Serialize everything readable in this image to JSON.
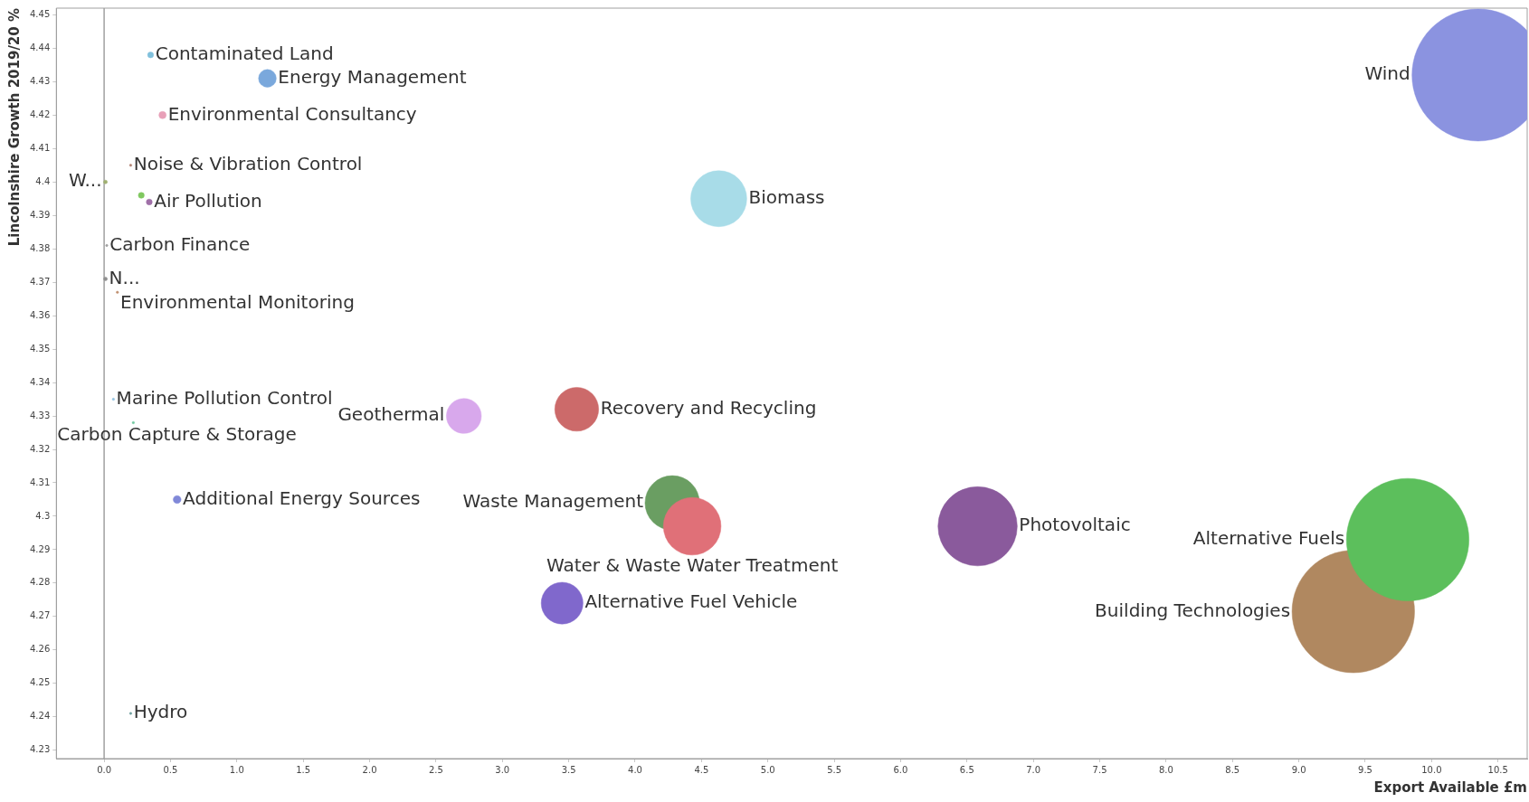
{
  "chart_data": {
    "type": "bubble",
    "xlabel": "Export Available £m",
    "ylabel": "Lincolnshire Growth 2019/20 %",
    "xlim": [
      -0.36,
      10.72
    ],
    "ylim": [
      4.2275,
      4.452
    ],
    "xticks": [
      {
        "value": 0,
        "label": "0.0"
      },
      0.5,
      {
        "value": 1,
        "label": "1.0"
      },
      1.5,
      {
        "value": 2,
        "label": "2.0"
      },
      2.5,
      {
        "value": 3,
        "label": "3.0"
      },
      3.5,
      {
        "value": 4,
        "label": "4.0"
      },
      4.5,
      {
        "value": 5,
        "label": "5.0"
      },
      5.5,
      {
        "value": 6,
        "label": "6.0"
      },
      6.5,
      {
        "value": 7,
        "label": "7.0"
      },
      7.5,
      {
        "value": 8,
        "label": "8.0"
      },
      8.5,
      {
        "value": 9,
        "label": "9.0"
      },
      9.5,
      {
        "value": 10,
        "label": "10.0"
      },
      10.5
    ],
    "yticks": [
      4.23,
      4.24,
      4.25,
      4.26,
      4.27,
      4.28,
      4.29,
      4.3,
      4.31,
      4.32,
      4.33,
      4.34,
      4.35,
      4.36,
      4.37,
      4.38,
      4.39,
      4.4,
      4.41,
      4.42,
      4.43,
      4.44,
      4.45
    ],
    "grid": false,
    "legend": false,
    "ref_lines": [
      {
        "axis": "x",
        "value": 0,
        "color": "#a0a0a0"
      }
    ],
    "series": [
      {
        "name": "Wind",
        "color": "#8b93e0",
        "x": [
          10.35
        ],
        "values": [
          4.432
        ],
        "sizes": [
          1
        ]
      },
      {
        "name": "Alternative Fuels",
        "color": "#5cbf5c",
        "x": [
          9.82
        ],
        "values": [
          4.293
        ],
        "sizes": [
          0.86
        ]
      },
      {
        "name": "Building Technologies",
        "color": "#b08860",
        "x": [
          9.41
        ],
        "values": [
          4.2715
        ],
        "sizes": [
          0.86
        ]
      },
      {
        "name": "Photovoltaic",
        "color": "#8a5a9c",
        "x": [
          6.58
        ],
        "values": [
          4.297
        ],
        "sizes": [
          0.36
        ]
      },
      {
        "name": "Biomass",
        "color": "#a8dce8",
        "x": [
          4.63
        ],
        "values": [
          4.395
        ],
        "sizes": [
          0.18
        ]
      },
      {
        "name": "Water & Waste Water Treatment",
        "color": "#e07078",
        "x": [
          4.43
        ],
        "values": [
          4.297
        ],
        "sizes": [
          0.19
        ]
      },
      {
        "name": "Waste Management",
        "color": "#6a9e62",
        "x": [
          4.28
        ],
        "values": [
          4.304
        ],
        "sizes": [
          0.17
        ]
      },
      {
        "name": "Recovery and Recycling",
        "color": "#cc6a6a",
        "x": [
          3.56
        ],
        "values": [
          4.332
        ],
        "sizes": [
          0.11
        ]
      },
      {
        "name": "Alternative Fuel Vehicle",
        "color": "#8068cc",
        "x": [
          3.45
        ],
        "values": [
          4.274
        ],
        "sizes": [
          0.1
        ]
      },
      {
        "name": "Geothermal",
        "color": "#d8a8ec",
        "x": [
          2.71
        ],
        "values": [
          4.33
        ],
        "sizes": [
          0.07
        ]
      },
      {
        "name": "Energy Management",
        "color": "#7aa8dc",
        "x": [
          1.23
        ],
        "values": [
          4.431
        ],
        "sizes": [
          0.018
        ]
      },
      {
        "name": "Environmental Consultancy",
        "color": "#e8a0b8",
        "x": [
          0.44
        ],
        "values": [
          4.42
        ],
        "sizes": [
          0.003
        ]
      },
      {
        "name": "Additional Energy Sources",
        "color": "#8088d8",
        "x": [
          0.55
        ],
        "values": [
          4.305
        ],
        "sizes": [
          0.0035
        ]
      },
      {
        "name": "Contaminated Land",
        "color": "#80c0dc",
        "x": [
          0.35
        ],
        "values": [
          4.438
        ],
        "sizes": [
          0.002
        ]
      },
      {
        "name": "Air Pollution",
        "color": "#a070a8",
        "x": [
          0.34
        ],
        "values": [
          4.394
        ],
        "sizes": [
          0.002
        ]
      },
      {
        "color": "#80c860",
        "x": [
          0.28
        ],
        "values": [
          4.396
        ],
        "sizes": [
          0.002
        ]
      },
      {
        "name": "Noise & Vibration Control",
        "color": "#b08070",
        "x": [
          0.2
        ],
        "values": [
          4.405
        ],
        "sizes": [
          0.0003
        ]
      },
      {
        "name": "W...",
        "color": "#a0b070",
        "x": [
          0.01
        ],
        "values": [
          4.4
        ],
        "sizes": [
          0.0008
        ]
      },
      {
        "name": "Carbon Finance",
        "color": "#a0a0a0",
        "x": [
          0.02
        ],
        "values": [
          4.381
        ],
        "sizes": [
          0.0003
        ]
      },
      {
        "name": "N...",
        "color": "#909090",
        "x": [
          0.01
        ],
        "values": [
          4.371
        ],
        "sizes": [
          0.0008
        ]
      },
      {
        "name": "Environmental Monitoring",
        "color": "#c09070",
        "x": [
          0.1
        ],
        "values": [
          4.367
        ],
        "sizes": [
          0.0003
        ]
      },
      {
        "name": "Marine Pollution Control",
        "color": "#90c0e0",
        "x": [
          0.07
        ],
        "values": [
          4.335
        ],
        "sizes": [
          0.0003
        ]
      },
      {
        "name": "Carbon Capture & Storage",
        "color": "#70c8a0",
        "x": [
          0.22
        ],
        "values": [
          4.328
        ],
        "sizes": [
          0.0003
        ]
      },
      {
        "name": "Hydro",
        "color": "#70a0a0",
        "x": [
          0.2
        ],
        "values": [
          4.241
        ],
        "sizes": [
          0.0003
        ]
      }
    ]
  }
}
